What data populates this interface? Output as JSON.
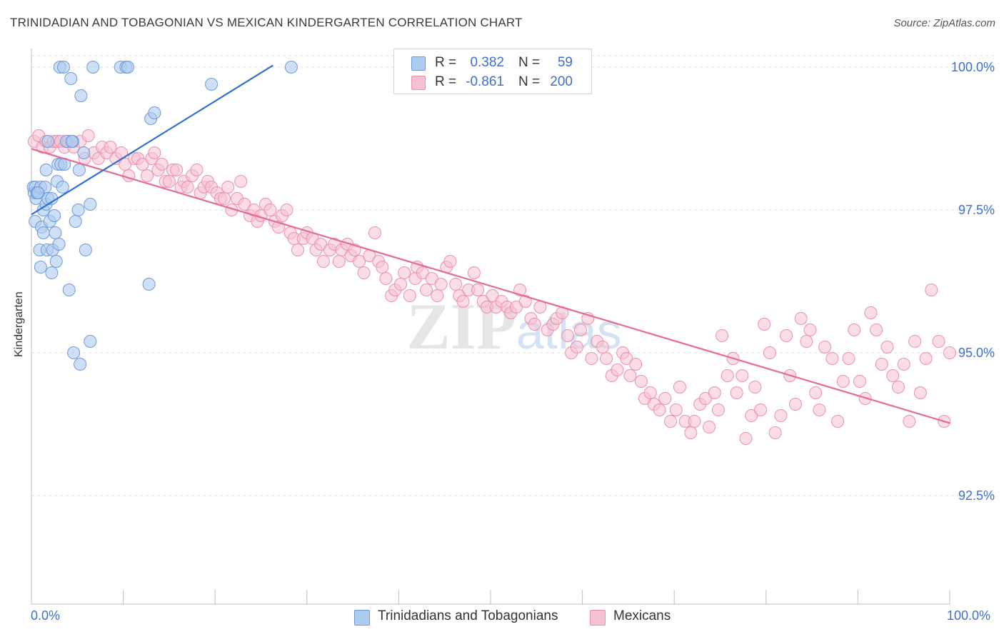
{
  "title": "TRINIDADIAN AND TOBAGONIAN VS MEXICAN KINDERGARTEN CORRELATION CHART",
  "source": "Source: ZipAtlas.com",
  "watermark": "ZIPatlas",
  "colors": {
    "blue_fill": "#aecbf0",
    "blue_stroke": "#6f9ad8",
    "blue_line": "#2f6fcf",
    "pink_fill": "#f6c1d2",
    "pink_stroke": "#ec8fae",
    "pink_line": "#e56a95",
    "axis_text": "#3d6fcf",
    "grid": "#dcdcdc"
  },
  "legend_top": {
    "rows": [
      {
        "r_label": "R =",
        "r_value": "0.382",
        "n_label": "N =",
        "n_value": "59",
        "color": "blue"
      },
      {
        "r_label": "R =",
        "r_value": "-0.861",
        "n_label": "N =",
        "n_value": "200",
        "color": "pink"
      }
    ]
  },
  "legend_bottom": {
    "items": [
      {
        "label": "Trinidadians and Tobagonians",
        "color": "blue"
      },
      {
        "label": "Mexicans",
        "color": "pink"
      }
    ]
  },
  "chart_data": {
    "type": "scatter",
    "title": "TRINIDADIAN AND TOBAGONIAN VS MEXICAN KINDERGARTEN CORRELATION CHART",
    "xlabel": "",
    "ylabel": "Kindergarten",
    "xlim": [
      0,
      100
    ],
    "ylim": [
      90.6,
      100.2
    ],
    "x_tick_labels": [
      "0.0%",
      "100.0%"
    ],
    "y_ticks": [
      92.5,
      95.0,
      97.5,
      100.0
    ],
    "y_tick_labels": [
      "92.5%",
      "95.0%",
      "97.5%",
      "100.0%"
    ],
    "grid": true,
    "legend_position": "top-center",
    "series": [
      {
        "name": "Trinidadians and Tobagonians",
        "color": "blue",
        "R": 0.382,
        "N": 59,
        "trend": {
          "x": [
            0,
            26.3
          ],
          "y": [
            97.42,
            100.03
          ]
        },
        "points": [
          [
            0.2,
            97.9
          ],
          [
            0.3,
            97.8
          ],
          [
            0.4,
            97.9
          ],
          [
            0.5,
            97.7
          ],
          [
            0.4,
            97.3
          ],
          [
            0.6,
            97.8
          ],
          [
            0.8,
            97.8
          ],
          [
            1.0,
            97.9
          ],
          [
            0.9,
            96.8
          ],
          [
            1.0,
            96.5
          ],
          [
            1.1,
            97.2
          ],
          [
            1.3,
            97.1
          ],
          [
            1.3,
            97.5
          ],
          [
            1.5,
            97.9
          ],
          [
            1.6,
            98.2
          ],
          [
            1.6,
            97.6
          ],
          [
            1.8,
            97.7
          ],
          [
            1.7,
            96.8
          ],
          [
            2.0,
            97.3
          ],
          [
            2.2,
            96.4
          ],
          [
            2.3,
            96.8
          ],
          [
            2.2,
            97.7
          ],
          [
            2.5,
            97.4
          ],
          [
            2.6,
            97.1
          ],
          [
            2.7,
            96.6
          ],
          [
            2.8,
            98.0
          ],
          [
            2.9,
            98.3
          ],
          [
            3.0,
            96.9
          ],
          [
            3.2,
            98.3
          ],
          [
            3.4,
            97.9
          ],
          [
            3.6,
            98.3
          ],
          [
            3.8,
            98.7
          ],
          [
            4.1,
            96.1
          ],
          [
            4.3,
            99.8
          ],
          [
            4.5,
            98.7
          ],
          [
            4.6,
            95.0
          ],
          [
            4.8,
            97.3
          ],
          [
            5.1,
            97.5
          ],
          [
            5.2,
            98.2
          ],
          [
            5.3,
            94.8
          ],
          [
            5.4,
            99.5
          ],
          [
            5.7,
            98.5
          ],
          [
            5.9,
            96.8
          ],
          [
            6.4,
            95.2
          ],
          [
            6.4,
            97.6
          ],
          [
            6.7,
            100.0
          ],
          [
            3.1,
            100.0
          ],
          [
            3.5,
            100.0
          ],
          [
            9.7,
            100.0
          ],
          [
            10.3,
            100.0
          ],
          [
            10.5,
            100.0
          ],
          [
            12.8,
            96.2
          ],
          [
            13.0,
            99.1
          ],
          [
            13.4,
            99.2
          ],
          [
            19.6,
            99.7
          ],
          [
            28.3,
            100.0
          ],
          [
            1.8,
            98.7
          ],
          [
            4.4,
            98.7
          ],
          [
            0.7,
            97.8
          ]
        ]
      },
      {
        "name": "Mexicans",
        "color": "pink",
        "R": -0.861,
        "N": 200,
        "trend": {
          "x": [
            0,
            100
          ],
          "y": [
            98.57,
            93.77
          ]
        },
        "points": [
          [
            0.3,
            98.7
          ],
          [
            0.8,
            98.8
          ],
          [
            1.2,
            98.6
          ],
          [
            1.6,
            98.7
          ],
          [
            2.0,
            98.6
          ],
          [
            2.4,
            98.7
          ],
          [
            2.8,
            98.7
          ],
          [
            3.2,
            98.7
          ],
          [
            3.6,
            98.6
          ],
          [
            4.0,
            98.7
          ],
          [
            4.6,
            98.6
          ],
          [
            5.3,
            98.7
          ],
          [
            5.8,
            98.4
          ],
          [
            6.2,
            98.8
          ],
          [
            6.8,
            98.5
          ],
          [
            7.3,
            98.4
          ],
          [
            7.7,
            98.6
          ],
          [
            8.2,
            98.5
          ],
          [
            8.6,
            98.6
          ],
          [
            9.2,
            98.4
          ],
          [
            9.8,
            98.5
          ],
          [
            10.2,
            98.3
          ],
          [
            10.6,
            98.1
          ],
          [
            11.2,
            98.4
          ],
          [
            11.6,
            98.4
          ],
          [
            12.1,
            98.3
          ],
          [
            12.6,
            98.1
          ],
          [
            13.1,
            98.4
          ],
          [
            13.4,
            98.5
          ],
          [
            13.8,
            98.2
          ],
          [
            14.2,
            98.3
          ],
          [
            14.6,
            98.0
          ],
          [
            15.0,
            98.0
          ],
          [
            15.4,
            98.2
          ],
          [
            15.8,
            98.2
          ],
          [
            16.3,
            97.9
          ],
          [
            16.6,
            98.0
          ],
          [
            17.0,
            97.9
          ],
          [
            17.5,
            98.1
          ],
          [
            18.0,
            98.2
          ],
          [
            18.4,
            97.8
          ],
          [
            18.8,
            97.9
          ],
          [
            19.2,
            98.0
          ],
          [
            19.6,
            97.9
          ],
          [
            20.2,
            97.8
          ],
          [
            20.6,
            97.7
          ],
          [
            21.0,
            97.7
          ],
          [
            21.4,
            97.9
          ],
          [
            21.8,
            97.5
          ],
          [
            22.4,
            97.7
          ],
          [
            22.8,
            98.0
          ],
          [
            23.2,
            97.6
          ],
          [
            23.8,
            97.4
          ],
          [
            24.2,
            97.5
          ],
          [
            24.6,
            97.3
          ],
          [
            25.0,
            97.4
          ],
          [
            25.5,
            97.6
          ],
          [
            26.0,
            97.5
          ],
          [
            26.5,
            97.3
          ],
          [
            26.9,
            97.2
          ],
          [
            27.3,
            97.4
          ],
          [
            27.8,
            97.5
          ],
          [
            28.2,
            97.1
          ],
          [
            28.6,
            97.0
          ],
          [
            29.0,
            96.8
          ],
          [
            29.6,
            97.0
          ],
          [
            30.0,
            97.1
          ],
          [
            30.6,
            97.0
          ],
          [
            31.0,
            96.8
          ],
          [
            31.5,
            96.9
          ],
          [
            31.8,
            96.6
          ],
          [
            32.5,
            96.8
          ],
          [
            33.0,
            96.9
          ],
          [
            33.5,
            96.6
          ],
          [
            33.8,
            96.8
          ],
          [
            34.4,
            96.9
          ],
          [
            34.8,
            96.7
          ],
          [
            35.2,
            96.8
          ],
          [
            35.7,
            96.6
          ],
          [
            36.2,
            96.4
          ],
          [
            36.8,
            96.7
          ],
          [
            37.4,
            97.1
          ],
          [
            37.8,
            96.6
          ],
          [
            38.2,
            96.5
          ],
          [
            38.6,
            96.3
          ],
          [
            39.2,
            96.0
          ],
          [
            39.6,
            96.1
          ],
          [
            40.2,
            96.2
          ],
          [
            40.6,
            96.4
          ],
          [
            41.2,
            96.0
          ],
          [
            41.8,
            96.3
          ],
          [
            42.0,
            96.5
          ],
          [
            42.6,
            96.4
          ],
          [
            43.0,
            96.1
          ],
          [
            43.6,
            96.3
          ],
          [
            44.2,
            96.0
          ],
          [
            44.6,
            96.2
          ],
          [
            45.2,
            96.5
          ],
          [
            45.6,
            96.6
          ],
          [
            46.2,
            96.2
          ],
          [
            46.6,
            96.0
          ],
          [
            47.0,
            95.9
          ],
          [
            47.6,
            96.1
          ],
          [
            48.2,
            96.4
          ],
          [
            48.6,
            96.1
          ],
          [
            49.2,
            95.9
          ],
          [
            49.6,
            95.8
          ],
          [
            50.2,
            96.0
          ],
          [
            50.6,
            95.8
          ],
          [
            51.2,
            95.9
          ],
          [
            51.8,
            95.8
          ],
          [
            52.2,
            95.7
          ],
          [
            52.8,
            95.8
          ],
          [
            53.2,
            96.1
          ],
          [
            53.8,
            95.9
          ],
          [
            54.4,
            95.6
          ],
          [
            54.8,
            95.5
          ],
          [
            55.4,
            95.8
          ],
          [
            56.2,
            95.4
          ],
          [
            56.8,
            95.5
          ],
          [
            57.2,
            95.6
          ],
          [
            57.8,
            95.7
          ],
          [
            58.4,
            95.3
          ],
          [
            58.8,
            95.0
          ],
          [
            59.4,
            95.1
          ],
          [
            59.8,
            95.4
          ],
          [
            60.6,
            95.6
          ],
          [
            61.0,
            94.9
          ],
          [
            61.6,
            95.2
          ],
          [
            62.2,
            95.1
          ],
          [
            62.6,
            94.9
          ],
          [
            63.2,
            94.6
          ],
          [
            63.8,
            94.7
          ],
          [
            64.4,
            95.0
          ],
          [
            64.8,
            94.9
          ],
          [
            65.2,
            94.6
          ],
          [
            65.8,
            94.8
          ],
          [
            66.4,
            94.5
          ],
          [
            66.8,
            94.2
          ],
          [
            67.4,
            94.3
          ],
          [
            67.8,
            94.1
          ],
          [
            68.4,
            94.0
          ],
          [
            69.0,
            94.2
          ],
          [
            69.6,
            93.8
          ],
          [
            70.2,
            94.0
          ],
          [
            70.6,
            94.4
          ],
          [
            71.2,
            93.8
          ],
          [
            71.8,
            93.6
          ],
          [
            72.2,
            93.8
          ],
          [
            72.8,
            94.1
          ],
          [
            73.4,
            94.2
          ],
          [
            73.8,
            93.7
          ],
          [
            74.4,
            94.3
          ],
          [
            74.8,
            94.0
          ],
          [
            75.2,
            95.3
          ],
          [
            75.8,
            94.6
          ],
          [
            76.4,
            94.9
          ],
          [
            76.8,
            94.3
          ],
          [
            77.4,
            94.6
          ],
          [
            77.8,
            93.5
          ],
          [
            78.4,
            93.9
          ],
          [
            78.8,
            94.4
          ],
          [
            79.4,
            94.0
          ],
          [
            79.8,
            95.5
          ],
          [
            80.4,
            95.0
          ],
          [
            81.0,
            93.6
          ],
          [
            81.6,
            93.9
          ],
          [
            82.2,
            95.3
          ],
          [
            82.6,
            94.6
          ],
          [
            83.2,
            94.1
          ],
          [
            83.8,
            95.6
          ],
          [
            84.4,
            95.2
          ],
          [
            84.8,
            95.4
          ],
          [
            85.4,
            94.3
          ],
          [
            85.8,
            94.0
          ],
          [
            86.4,
            95.1
          ],
          [
            87.2,
            94.9
          ],
          [
            87.8,
            93.8
          ],
          [
            88.4,
            94.5
          ],
          [
            89.0,
            94.9
          ],
          [
            89.6,
            95.4
          ],
          [
            90.2,
            94.5
          ],
          [
            90.8,
            94.2
          ],
          [
            91.4,
            95.7
          ],
          [
            92.0,
            95.4
          ],
          [
            92.6,
            94.8
          ],
          [
            93.2,
            95.1
          ],
          [
            93.8,
            94.6
          ],
          [
            94.4,
            94.4
          ],
          [
            95.0,
            94.8
          ],
          [
            95.6,
            93.8
          ],
          [
            96.2,
            95.2
          ],
          [
            96.8,
            94.3
          ],
          [
            97.4,
            94.9
          ],
          [
            98.0,
            96.1
          ],
          [
            98.8,
            95.2
          ],
          [
            99.4,
            93.8
          ],
          [
            100.0,
            95.0
          ]
        ]
      }
    ]
  }
}
